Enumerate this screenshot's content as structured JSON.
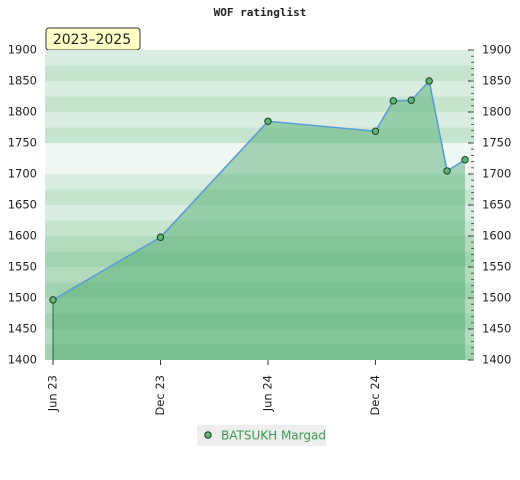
{
  "chart_data": {
    "type": "line",
    "title": "WOF ratinglist",
    "badge": "2023–2025",
    "x": [
      "2023-06",
      "2023-12",
      "2024-06",
      "2024-12",
      "2025-01",
      "2025-02",
      "2025-03",
      "2025-04",
      "2025-05"
    ],
    "series": [
      {
        "name": "BATSUKH Margad",
        "color": "#5b9bd5",
        "values": [
          1497,
          1598,
          1785,
          1769,
          1818,
          1819,
          1850,
          1705,
          1723
        ]
      }
    ],
    "xticks": [
      {
        "value": "2023-06",
        "label": "Jun 23"
      },
      {
        "value": "2023-12",
        "label": "Dec 23"
      },
      {
        "value": "2024-06",
        "label": "Jun 24"
      },
      {
        "value": "2024-12",
        "label": "Dec 24"
      }
    ],
    "ylim": [
      1400,
      1900
    ],
    "yticks": [
      1400,
      1450,
      1500,
      1550,
      1600,
      1650,
      1700,
      1750,
      1800,
      1850,
      1900
    ],
    "y2lim": [
      1400,
      1900
    ],
    "y2ticks": [
      1400,
      1450,
      1500,
      1550,
      1600,
      1650,
      1700,
      1750,
      1800,
      1850,
      1900
    ]
  }
}
